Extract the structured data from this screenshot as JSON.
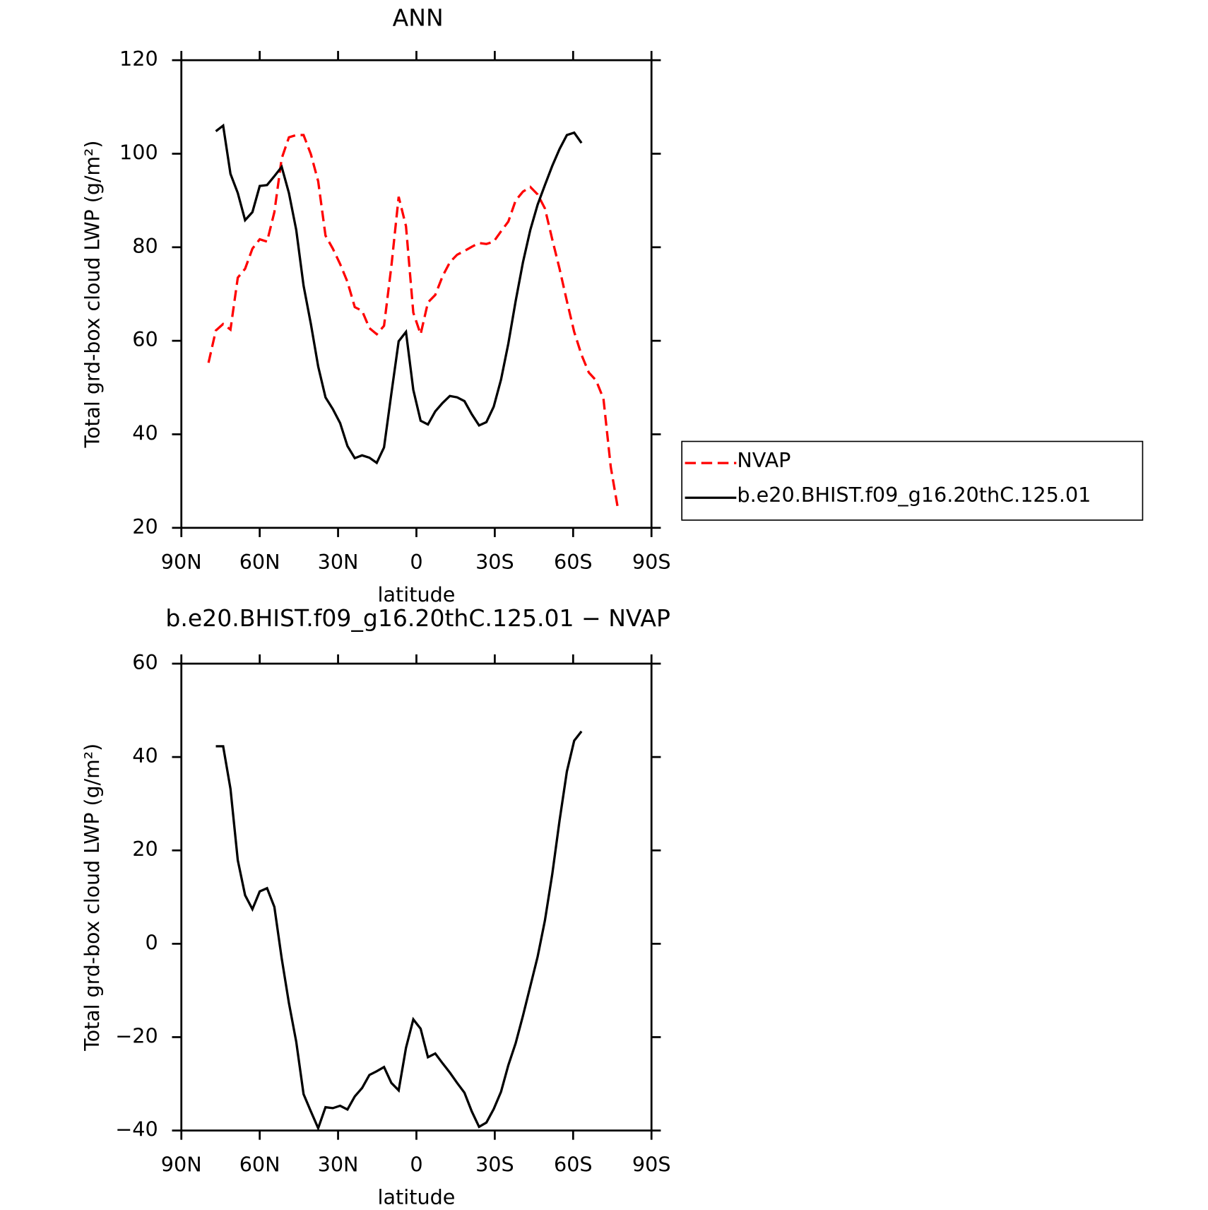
{
  "chart_data": [
    {
      "type": "line",
      "title": "ANN",
      "xlabel": "latitude",
      "ylabel": "Total grd-box cloud LWP (g/m²)",
      "x": [
        79.6,
        76.8,
        74.0,
        71.2,
        68.4,
        65.6,
        62.8,
        60.0,
        57.2,
        54.4,
        51.6,
        48.8,
        46.0,
        43.2,
        40.4,
        37.6,
        34.8,
        32.0,
        29.2,
        26.4,
        23.6,
        20.8,
        18.0,
        15.2,
        12.4,
        9.6,
        6.8,
        4.0,
        1.2,
        -1.6,
        -4.4,
        -7.2,
        -10.0,
        -12.8,
        -15.6,
        -18.4,
        -21.2,
        -24.0,
        -26.8,
        -29.6,
        -32.4,
        -35.2,
        -38.0,
        -40.8,
        -43.6,
        -46.4,
        -49.2,
        -52.0,
        -54.8,
        -57.6,
        -60.4,
        -63.2,
        -66.0,
        -68.8,
        -71.6,
        -74.4,
        -77.2
      ],
      "series": [
        {
          "name": "NVAP",
          "color": "#ff0000",
          "dashed": true,
          "values": [
            55.3,
            62.2,
            63.6,
            62.4,
            73.5,
            75.4,
            79.7,
            81.7,
            81.2,
            87.5,
            99.0,
            103.5,
            104.0,
            104.0,
            99.9,
            94.1,
            82.5,
            79.7,
            76.4,
            72.6,
            67.2,
            66.4,
            62.7,
            61.4,
            63.2,
            75.9,
            90.8,
            84.5,
            66.0,
            61.4,
            68.2,
            69.8,
            73.8,
            76.8,
            78.4,
            79.2,
            80.1,
            80.9,
            80.7,
            81.2,
            83.4,
            85.5,
            90.0,
            91.9,
            92.9,
            91.3,
            88.3,
            81.7,
            75.4,
            68.5,
            61.9,
            57.0,
            53.2,
            51.5,
            47.6,
            33.0,
            24.0
          ]
        },
        {
          "name": "b.e20.BHIST.f09_g16.20thC.125.01",
          "color": "#000000",
          "dashed": false,
          "values": [
            null,
            104.8,
            106.0,
            95.7,
            91.6,
            85.8,
            87.5,
            93.1,
            93.3,
            95.2,
            97.2,
            91.6,
            83.7,
            71.8,
            63.6,
            54.5,
            47.9,
            45.4,
            42.4,
            37.5,
            34.9,
            35.5,
            35.0,
            33.9,
            37.2,
            48.7,
            59.9,
            61.9,
            49.5,
            42.9,
            42.1,
            44.9,
            46.7,
            48.2,
            47.9,
            47.1,
            44.3,
            41.9,
            42.6,
            45.9,
            51.7,
            59.4,
            68.5,
            76.8,
            83.7,
            89.1,
            93.3,
            97.4,
            101.0,
            104.0,
            104.5,
            102.3,
            null,
            null,
            null,
            null,
            null
          ]
        }
      ],
      "xlim": [
        90,
        -90
      ],
      "xticks": [
        {
          "value": 90,
          "label": "90N"
        },
        {
          "value": 60,
          "label": "60N"
        },
        {
          "value": 30,
          "label": "30N"
        },
        0,
        {
          "value": -30,
          "label": "30S"
        },
        {
          "value": -60,
          "label": "60S"
        },
        {
          "value": -90,
          "label": "90S"
        }
      ],
      "ylim": [
        20,
        120
      ],
      "yticks": [
        20,
        40,
        60,
        80,
        100,
        120
      ],
      "legend": "right"
    },
    {
      "type": "line",
      "title": "b.e20.BHIST.f09_g16.20thC.125.01 − NVAP",
      "xlabel": "latitude",
      "ylabel": "Total grd-box cloud LWP (g/m²)",
      "x": [
        79.6,
        76.8,
        74.0,
        71.2,
        68.4,
        65.6,
        62.8,
        60.0,
        57.2,
        54.4,
        51.6,
        48.8,
        46.0,
        43.2,
        40.4,
        37.6,
        34.8,
        32.0,
        29.2,
        26.4,
        23.6,
        20.8,
        18.0,
        15.2,
        12.4,
        9.6,
        6.8,
        4.0,
        1.2,
        -1.6,
        -4.4,
        -7.2,
        -10.0,
        -12.8,
        -15.6,
        -18.4,
        -21.2,
        -24.0,
        -26.8,
        -29.6,
        -32.4,
        -35.2,
        -38.0,
        -40.8,
        -43.6,
        -46.4,
        -49.2,
        -52.0,
        -54.8,
        -57.6,
        -60.4,
        -63.2,
        -66.0,
        -68.8,
        -71.6,
        -74.4,
        -77.2
      ],
      "series": [
        {
          "color": "#000000",
          "dashed": false,
          "values": [
            null,
            42.3,
            42.3,
            33.2,
            17.9,
            10.4,
            7.4,
            11.2,
            11.9,
            7.9,
            -3.1,
            -12.7,
            -21.0,
            -32.2,
            -35.9,
            -39.5,
            -35.0,
            -35.2,
            -34.7,
            -35.5,
            -32.7,
            -30.9,
            -28.1,
            -27.3,
            -26.4,
            -29.8,
            -31.4,
            -22.3,
            -16.2,
            -18.2,
            -24.3,
            -23.5,
            -25.6,
            -27.6,
            -29.8,
            -31.9,
            -35.9,
            -39.2,
            -38.3,
            -35.4,
            -31.7,
            -26.0,
            -21.3,
            -15.4,
            -9.1,
            -2.8,
            5.0,
            14.9,
            26.4,
            36.9,
            43.5,
            45.5,
            null,
            null,
            null,
            null,
            null
          ]
        }
      ],
      "xlim": [
        90,
        -90
      ],
      "xticks": [
        {
          "value": 90,
          "label": "90N"
        },
        {
          "value": 60,
          "label": "60N"
        },
        {
          "value": 30,
          "label": "30N"
        },
        0,
        {
          "value": -30,
          "label": "30S"
        },
        {
          "value": -60,
          "label": "60S"
        },
        {
          "value": -90,
          "label": "90S"
        }
      ],
      "ylim": [
        -40,
        60
      ],
      "yticks": [
        {
          "value": -40,
          "label": "−40"
        },
        {
          "value": -20,
          "label": "−20"
        },
        0,
        20,
        40,
        60
      ]
    }
  ]
}
